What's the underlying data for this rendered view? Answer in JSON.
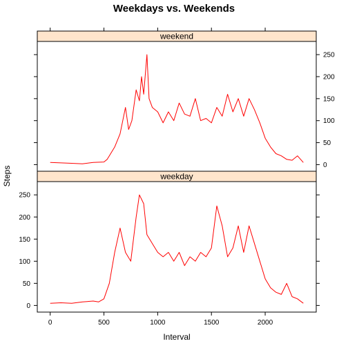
{
  "chart_data": {
    "type": "line",
    "title": "Weekdays vs. Weekends",
    "xlabel": "Interval",
    "ylabel": "Steps",
    "xlim": [
      -120,
      2475
    ],
    "ylim": [
      -15,
      280
    ],
    "x_ticks": [
      0,
      500,
      1000,
      1500,
      2000
    ],
    "y_ticks": [
      0,
      50,
      100,
      150,
      200,
      250
    ],
    "line_color": "#ff0000",
    "strip_color": "#ffe5cc",
    "panels": [
      {
        "name": "weekend",
        "y_axis_side": "right",
        "points": [
          [
            0,
            5
          ],
          [
            100,
            4
          ],
          [
            200,
            3
          ],
          [
            300,
            2
          ],
          [
            400,
            5
          ],
          [
            500,
            6
          ],
          [
            530,
            12
          ],
          [
            550,
            20
          ],
          [
            600,
            40
          ],
          [
            650,
            70
          ],
          [
            700,
            130
          ],
          [
            730,
            80
          ],
          [
            760,
            100
          ],
          [
            800,
            170
          ],
          [
            830,
            145
          ],
          [
            850,
            200
          ],
          [
            870,
            160
          ],
          [
            900,
            250
          ],
          [
            920,
            150
          ],
          [
            950,
            130
          ],
          [
            1000,
            120
          ],
          [
            1050,
            95
          ],
          [
            1100,
            120
          ],
          [
            1150,
            100
          ],
          [
            1200,
            140
          ],
          [
            1250,
            115
          ],
          [
            1300,
            110
          ],
          [
            1350,
            150
          ],
          [
            1400,
            100
          ],
          [
            1450,
            105
          ],
          [
            1500,
            95
          ],
          [
            1550,
            130
          ],
          [
            1600,
            110
          ],
          [
            1650,
            160
          ],
          [
            1700,
            120
          ],
          [
            1750,
            150
          ],
          [
            1800,
            110
          ],
          [
            1850,
            150
          ],
          [
            1900,
            125
          ],
          [
            1950,
            95
          ],
          [
            2000,
            60
          ],
          [
            2050,
            40
          ],
          [
            2100,
            25
          ],
          [
            2150,
            20
          ],
          [
            2200,
            12
          ],
          [
            2250,
            10
          ],
          [
            2300,
            20
          ],
          [
            2355,
            5
          ]
        ]
      },
      {
        "name": "weekday",
        "y_axis_side": "left",
        "points": [
          [
            0,
            5
          ],
          [
            100,
            6
          ],
          [
            200,
            5
          ],
          [
            300,
            8
          ],
          [
            400,
            10
          ],
          [
            450,
            8
          ],
          [
            500,
            15
          ],
          [
            550,
            50
          ],
          [
            600,
            120
          ],
          [
            650,
            175
          ],
          [
            700,
            120
          ],
          [
            750,
            100
          ],
          [
            800,
            200
          ],
          [
            830,
            250
          ],
          [
            850,
            240
          ],
          [
            870,
            230
          ],
          [
            900,
            160
          ],
          [
            950,
            140
          ],
          [
            1000,
            120
          ],
          [
            1050,
            110
          ],
          [
            1100,
            120
          ],
          [
            1150,
            100
          ],
          [
            1200,
            120
          ],
          [
            1250,
            90
          ],
          [
            1300,
            110
          ],
          [
            1350,
            100
          ],
          [
            1400,
            120
          ],
          [
            1450,
            110
          ],
          [
            1500,
            130
          ],
          [
            1550,
            225
          ],
          [
            1600,
            180
          ],
          [
            1650,
            110
          ],
          [
            1700,
            130
          ],
          [
            1750,
            180
          ],
          [
            1800,
            120
          ],
          [
            1850,
            180
          ],
          [
            1900,
            140
          ],
          [
            1950,
            100
          ],
          [
            2000,
            60
          ],
          [
            2050,
            40
          ],
          [
            2100,
            30
          ],
          [
            2150,
            25
          ],
          [
            2200,
            50
          ],
          [
            2250,
            20
          ],
          [
            2300,
            15
          ],
          [
            2355,
            5
          ]
        ]
      }
    ]
  }
}
